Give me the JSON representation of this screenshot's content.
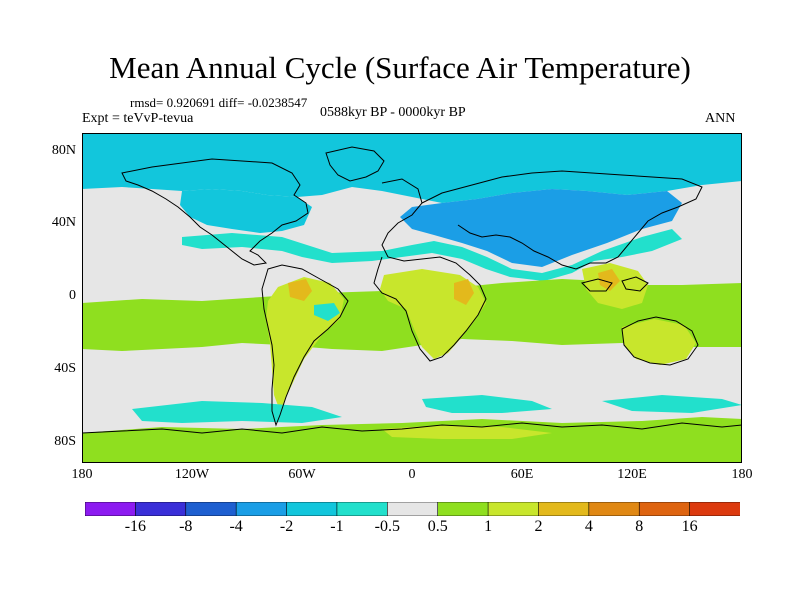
{
  "title": "Mean Annual Cycle (Surface Air Temperature)",
  "stats_line": "rmsd= 0.920691 diff= -0.0238547",
  "experiment_line": "Expt = teVvP-tevua",
  "period_line": "0588kyr BP - 0000kyr BP",
  "season": "ANN",
  "lat_labels": [
    "80N",
    "40N",
    "0",
    "40S",
    "80S"
  ],
  "lon_labels": [
    "180",
    "120W",
    "60W",
    "0",
    "60E",
    "120E",
    "180"
  ],
  "colorbar": {
    "labels": [
      "-16",
      "-8",
      "-4",
      "-2",
      "-1",
      "-0.5",
      "0.5",
      "1",
      "2",
      "4",
      "8",
      "16"
    ],
    "colors": [
      "#8c1bf0",
      "#3a2fd8",
      "#1e5fd0",
      "#1b9ee6",
      "#12c6dc",
      "#22e0cc",
      "#e6e6e6",
      "#8fdf1f",
      "#c8e62c",
      "#e3b91c",
      "#e08814",
      "#de6410",
      "#dc3a0e"
    ]
  },
  "map": {
    "type": "global temperature anomaly map",
    "projection": "cylindrical equidistant",
    "colors": {
      "neutral": "#e6e6e6",
      "light_cool": "#22e0cc",
      "cool": "#12c6dc",
      "cooler": "#1b9ee6",
      "warm": "#8fdf1f",
      "warmer": "#c8e62c",
      "warmest": "#e3b91c",
      "coast": "#000000"
    }
  }
}
